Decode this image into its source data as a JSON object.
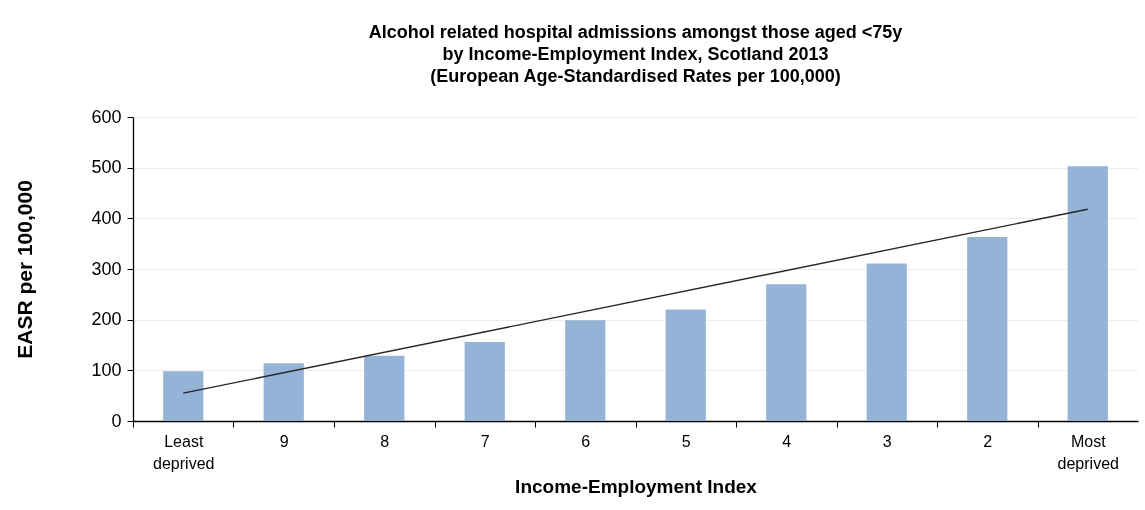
{
  "chart_data": {
    "type": "bar",
    "title": "Alcohol related hospital admissions amongst those aged <75y\nby Income-Employment Index, Scotland 2013\n(European Age-Standardised Rates per 100,000)",
    "xlabel": "Income-Employment Index",
    "ylabel": "EASR per 100,000",
    "categories": [
      "Least deprived",
      "9",
      "8",
      "7",
      "6",
      "5",
      "4",
      "3",
      "2",
      "Most deprived"
    ],
    "series": [
      {
        "color": "#95b3d7",
        "values": [
          98,
          114,
          129,
          156,
          199,
          220,
          270,
          311,
          363,
          503
        ]
      },
      {
        "type": "line",
        "x": [
          "Least deprived",
          "Most deprived"
        ],
        "values": [
          55,
          418
        ],
        "color": "#262626"
      }
    ],
    "ylim": [
      0,
      600
    ],
    "yticks": [
      0,
      100,
      200,
      300,
      400,
      500,
      600
    ],
    "grid": "y"
  }
}
